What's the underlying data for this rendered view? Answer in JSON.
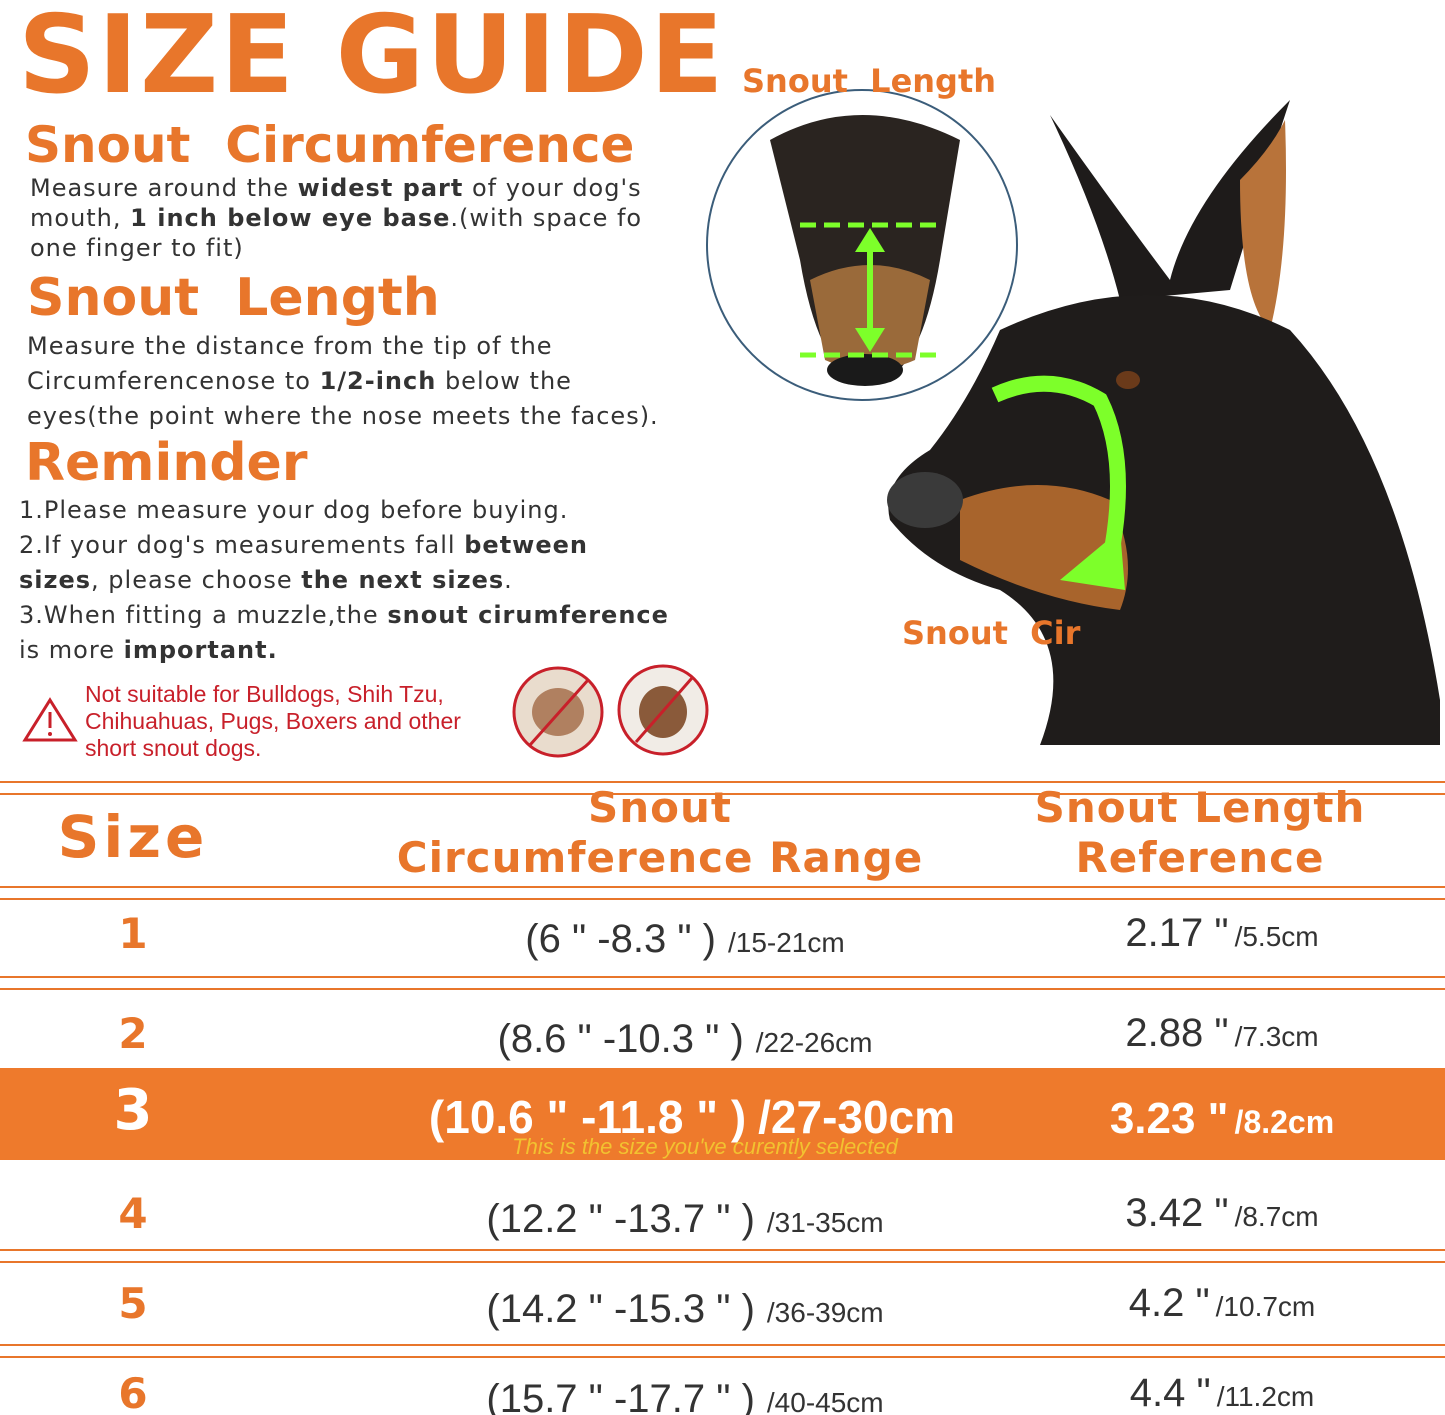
{
  "header": {
    "title": "SIZE GUIDE",
    "snout_length_label": "Snout  Length",
    "snout_cir_label": "Snout  Cir"
  },
  "sections": [
    {
      "heading": "Snout  Circumference",
      "lines": [
        [
          {
            "text": "Measure around the ",
            "bold": false
          },
          {
            "text": "widest part",
            "bold": true
          },
          {
            "text": " of your dog's",
            "bold": false
          }
        ],
        [
          {
            "text": "mouth, ",
            "bold": false
          },
          {
            "text": "1 inch below eye base",
            "bold": true
          },
          {
            "text": ".(with space fo",
            "bold": false
          }
        ],
        [
          {
            "text": "one finger to fit)",
            "bold": false
          }
        ]
      ]
    },
    {
      "heading": "Snout  Length",
      "lines": [
        [
          {
            "text": "Measure the distance from the tip of the",
            "bold": false
          }
        ],
        [
          {
            "text": "Circumferencenose to ",
            "bold": false
          },
          {
            "text": "1/2-inch",
            "bold": true
          },
          {
            "text": " below the",
            "bold": false
          }
        ],
        [
          {
            "text": "eyes(the point where the nose meets the faces).",
            "bold": false
          }
        ]
      ]
    },
    {
      "heading": "Reminder",
      "lines": [
        [
          {
            "text": "1.Please measure your dog before buying.",
            "bold": false
          }
        ],
        [
          {
            "text": "2.If your dog's measurements fall ",
            "bold": false
          },
          {
            "text": "between",
            "bold": true
          }
        ],
        [
          {
            "text": "sizes",
            "bold": true
          },
          {
            "text": ", please choose ",
            "bold": false
          },
          {
            "text": "the next sizes",
            "bold": true
          },
          {
            "text": ".",
            "bold": false
          }
        ],
        [
          {
            "text": "3.When fitting a muzzle,the ",
            "bold": false
          },
          {
            "text": "snout cirumference",
            "bold": true
          }
        ],
        [
          {
            "text": "is more ",
            "bold": false
          },
          {
            "text": "important.",
            "bold": true
          }
        ]
      ]
    }
  ],
  "warning": {
    "lines": [
      "Not suitable for Bulldogs, Shih Tzu,",
      "Chihuahuas, Pugs, Boxers and other",
      "short snout dogs."
    ]
  },
  "table": {
    "columns": [
      [
        "Size"
      ],
      [
        "Snout",
        "Circumference Range"
      ],
      [
        "Snout Length",
        "Reference"
      ]
    ],
    "rows": [
      {
        "size": "1",
        "circumference": "(6 \" -8.3 \" )",
        "circumference_cm": "/15-21cm",
        "length": "2.17 \"",
        "length_cm": "/5.5cm"
      },
      {
        "size": "2",
        "circumference": "(8.6 \" -10.3 \" )",
        "circumference_cm": "/22-26cm",
        "length": "2.88 \"",
        "length_cm": "/7.3cm"
      },
      {
        "size": "3",
        "circumference": "(10.6 \" -11.8 \" )",
        "circumference_cm": "/27-30cm",
        "length": "3.23 \"",
        "length_cm": "/8.2cm",
        "selected": true,
        "note": "This is the size you've curently selected"
      },
      {
        "size": "4",
        "circumference": "(12.2 \" -13.7 \" )",
        "circumference_cm": "/31-35cm",
        "length": "3.42 \"",
        "length_cm": "/8.7cm"
      },
      {
        "size": "5",
        "circumference": "(14.2 \" -15.3 \" )",
        "circumference_cm": "/36-39cm",
        "length": "4.2 \"",
        "length_cm": "/10.7cm"
      },
      {
        "size": "6",
        "circumference": "(15.7 \" -17.7 \" )",
        "circumference_cm": "/40-45cm",
        "length": "4.4 \"",
        "length_cm": "/11.2cm"
      }
    ]
  }
}
